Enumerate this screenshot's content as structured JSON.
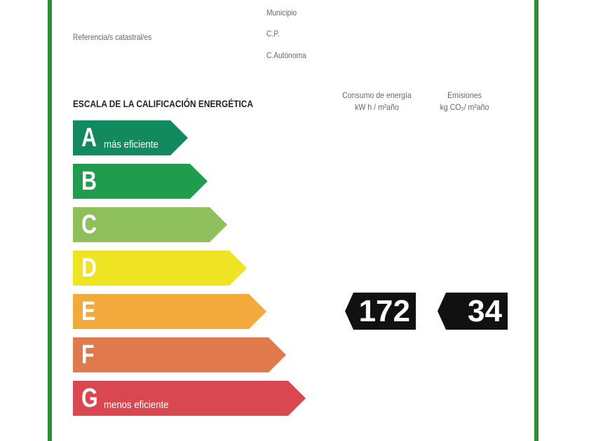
{
  "info": {
    "referencia": "Referencia/s catastral/es",
    "municipio": "Municipio",
    "cp": "C.P.",
    "autonoma": "C.Autónoma"
  },
  "title": "ESCALA DE LA CALIFICACIÓN ENERGÉTICA",
  "columns": {
    "consumo": "Consumo de energía",
    "consumo_unit": "kW h / m²año",
    "emisiones": "Emisiones",
    "emisiones_unit": "kg CO₂/ m²año"
  },
  "scale": [
    {
      "letter": "A",
      "sub": "más eficiente",
      "color": "#128a5e"
    },
    {
      "letter": "B",
      "sub": "",
      "color": "#1f9c4e"
    },
    {
      "letter": "C",
      "sub": "",
      "color": "#8dbf5b"
    },
    {
      "letter": "D",
      "sub": "",
      "color": "#efe424"
    },
    {
      "letter": "E",
      "sub": "",
      "color": "#f2aa3c"
    },
    {
      "letter": "F",
      "sub": "",
      "color": "#e07a4c"
    },
    {
      "letter": "G",
      "sub": "menos eficiente",
      "color": "#d94850"
    }
  ],
  "rating": {
    "letter": "E",
    "consumo": "172",
    "emisiones": "34"
  },
  "border_color": "#2e8b3a"
}
